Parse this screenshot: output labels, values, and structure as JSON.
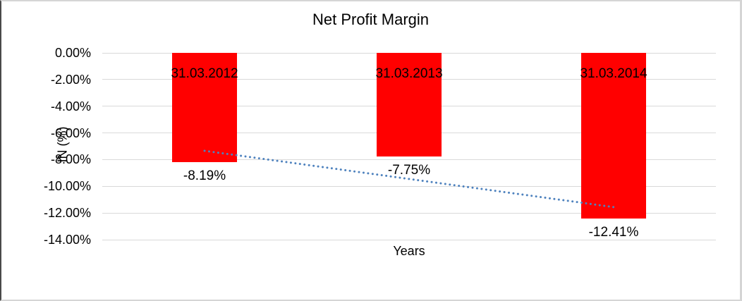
{
  "chart_data": {
    "type": "bar",
    "title": "Net Profit Margin",
    "xlabel": "Years",
    "ylabel": "IN (%)",
    "categories": [
      "31.03.2012",
      "31.03.2013",
      "31.03.2014"
    ],
    "series": [
      {
        "name": "Net Profit Margin",
        "values": [
          -8.19,
          -7.75,
          -12.41
        ]
      }
    ],
    "data_labels": [
      "-8.19%",
      "-7.75%",
      "-12.41%"
    ],
    "category_label_position": "inside-top-of-bar",
    "value_label_position": "below-bar",
    "ylim": [
      -14,
      0
    ],
    "ytick_labels": [
      "0.00%",
      "-2.00%",
      "-4.00%",
      "-6.00%",
      "-8.00%",
      "-10.00%",
      "-12.00%",
      "-14.00%"
    ],
    "grid": true,
    "legend": "none",
    "colors": {
      "bar": "#FF0000",
      "gridline": "#D9D9D9",
      "trendline": "#4E82BE",
      "text": "#000000",
      "background": "#FFFFFF"
    },
    "trendline": {
      "type": "linear",
      "style": "dotted",
      "start_value": -7.34,
      "end_value": -11.56
    }
  }
}
